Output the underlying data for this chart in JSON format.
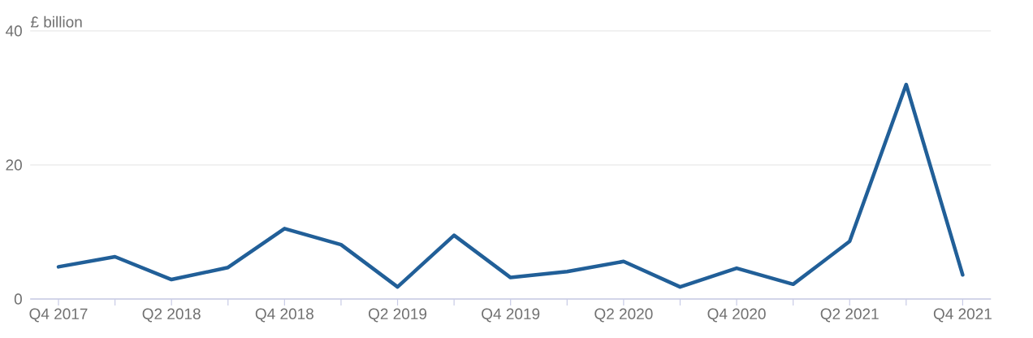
{
  "chart_data": {
    "type": "line",
    "ylabel": "£ billion",
    "categories": [
      "Q4 2017",
      null,
      "Q2 2018",
      null,
      "Q4 2018",
      null,
      "Q2 2019",
      null,
      "Q4 2019",
      null,
      "Q2 2020",
      null,
      "Q4 2020",
      null,
      "Q2 2021",
      null,
      "Q4 2021"
    ],
    "values": [
      4.8,
      6.3,
      2.9,
      4.7,
      10.5,
      8.1,
      1.8,
      9.5,
      3.2,
      4.1,
      5.6,
      1.8,
      4.6,
      2.2,
      8.6,
      32.0,
      3.6
    ],
    "color": "#215f98",
    "ylim": [
      0,
      40
    ],
    "yticks": [
      0,
      20,
      40
    ],
    "grid": "y"
  }
}
